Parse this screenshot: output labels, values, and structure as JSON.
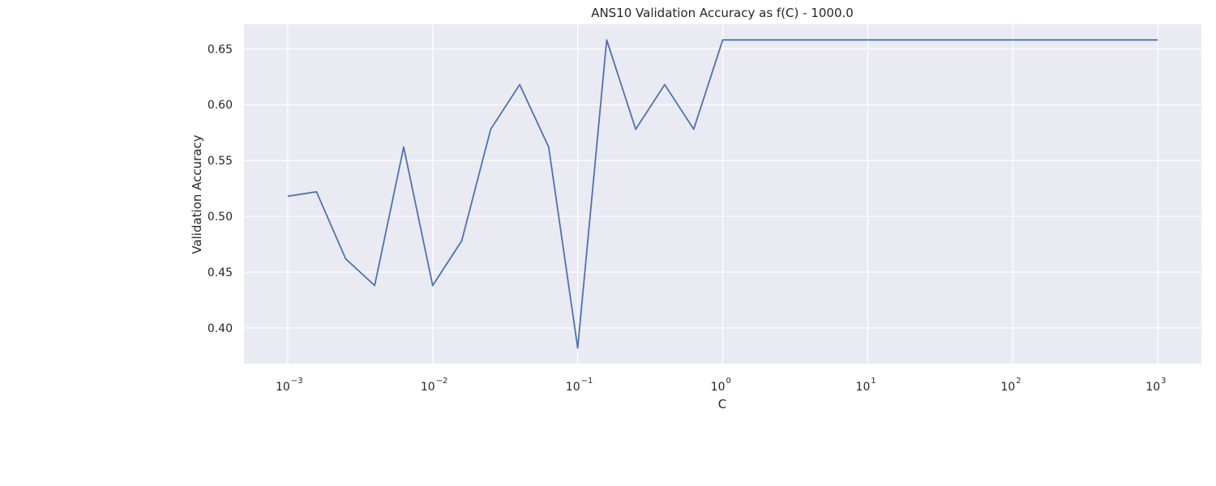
{
  "chart_data": {
    "type": "line",
    "title": "ANS10 Validation Accuracy as f(C) - 1000.0",
    "xlabel": "C",
    "ylabel": "Validation Accuracy",
    "x_scale": "log",
    "xlim": [
      0.0005,
      2000
    ],
    "ylim": [
      0.368,
      0.672
    ],
    "x_ticks": [
      {
        "value": 0.001,
        "base": "10",
        "exp": "−3"
      },
      {
        "value": 0.01,
        "base": "10",
        "exp": "−2"
      },
      {
        "value": 0.1,
        "base": "10",
        "exp": "−1"
      },
      {
        "value": 1,
        "base": "10",
        "exp": "0"
      },
      {
        "value": 10,
        "base": "10",
        "exp": "1"
      },
      {
        "value": 100,
        "base": "10",
        "exp": "2"
      },
      {
        "value": 1000,
        "base": "10",
        "exp": "3"
      }
    ],
    "y_ticks": [
      {
        "value": 0.4,
        "label": "0.40"
      },
      {
        "value": 0.45,
        "label": "0.45"
      },
      {
        "value": 0.5,
        "label": "0.50"
      },
      {
        "value": 0.55,
        "label": "0.55"
      },
      {
        "value": 0.6,
        "label": "0.60"
      },
      {
        "value": 0.65,
        "label": "0.65"
      }
    ],
    "grid": true,
    "colors": {
      "background": "#eaeaf2",
      "grid": "#ffffff",
      "line": "#4c72b0"
    },
    "series": [
      {
        "x": [
          0.001,
          0.00158,
          0.00251,
          0.00398,
          0.00631,
          0.01,
          0.01585,
          0.02512,
          0.03981,
          0.0631,
          0.1,
          0.15849,
          0.25119,
          0.39811,
          0.63096,
          1,
          1.58489,
          2.51189,
          3.98107,
          6.30957,
          10,
          15.8489,
          25.1189,
          39.8107,
          63.0957,
          100,
          158.489,
          251.189,
          398.107,
          630.957,
          1000
        ],
        "values": [
          0.518,
          0.522,
          0.462,
          0.438,
          0.562,
          0.438,
          0.478,
          0.578,
          0.618,
          0.562,
          0.382,
          0.658,
          0.578,
          0.618,
          0.578,
          0.658,
          0.658,
          0.658,
          0.658,
          0.658,
          0.658,
          0.658,
          0.658,
          0.658,
          0.658,
          0.658,
          0.658,
          0.658,
          0.658,
          0.658,
          0.658
        ]
      }
    ]
  }
}
